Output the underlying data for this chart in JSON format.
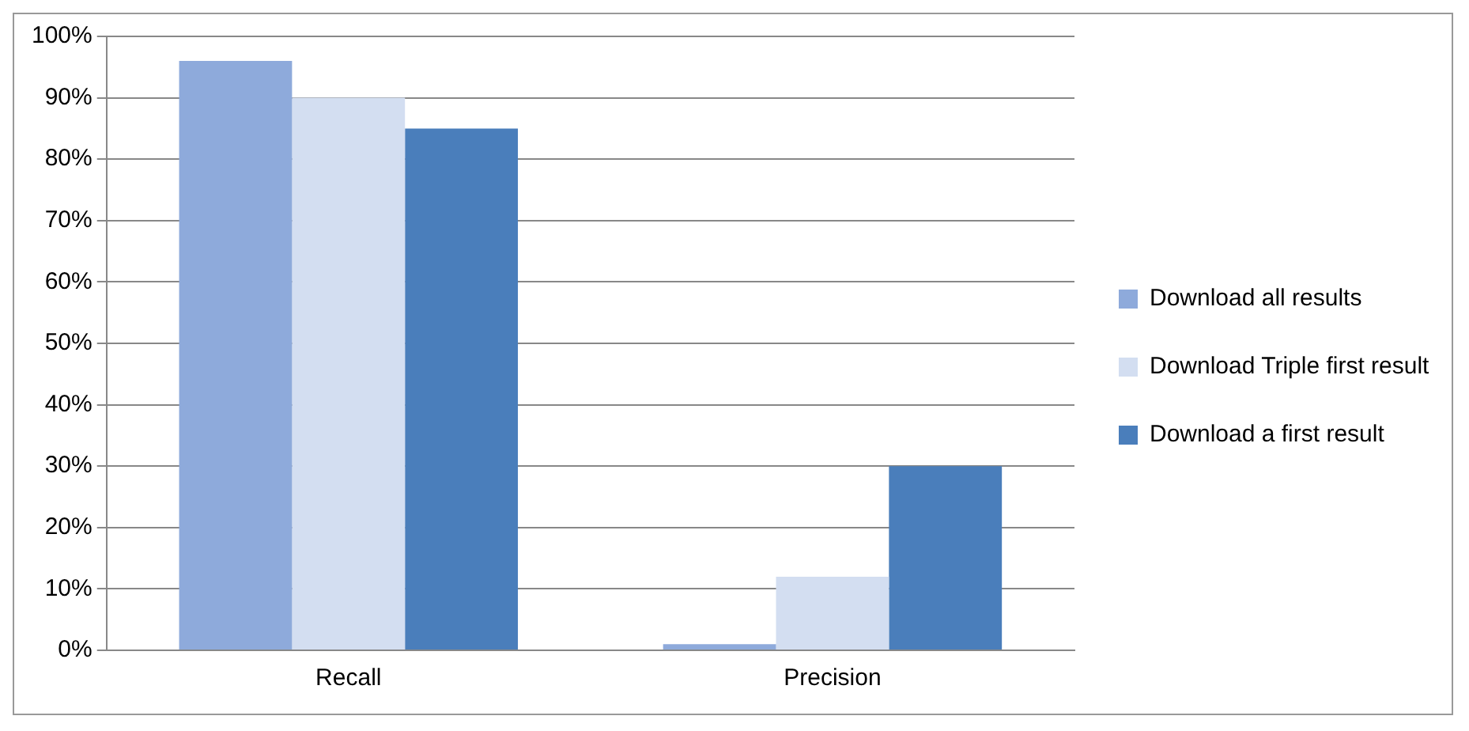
{
  "chart_data": {
    "type": "bar",
    "categories": [
      "Recall",
      "Precision"
    ],
    "series": [
      {
        "name": "Download all results",
        "color": "#8eaadb",
        "values": [
          96,
          1
        ]
      },
      {
        "name": "Download Triple first result",
        "color": "#d3def1",
        "values": [
          90,
          12
        ]
      },
      {
        "name": "Download a first result",
        "color": "#4a7ebb",
        "values": [
          85,
          30
        ]
      }
    ],
    "ylim": [
      0,
      100
    ],
    "yticks": [
      {
        "value": 0,
        "label": "0%"
      },
      {
        "value": 10,
        "label": "10%"
      },
      {
        "value": 20,
        "label": "20%"
      },
      {
        "value": 30,
        "label": "30%"
      },
      {
        "value": 40,
        "label": "40%"
      },
      {
        "value": 50,
        "label": "50%"
      },
      {
        "value": 60,
        "label": "60%"
      },
      {
        "value": 70,
        "label": "70%"
      },
      {
        "value": 80,
        "label": "80%"
      },
      {
        "value": 90,
        "label": "90%"
      },
      {
        "value": 100,
        "label": "100%"
      }
    ],
    "grid": "y",
    "legend": "right"
  }
}
